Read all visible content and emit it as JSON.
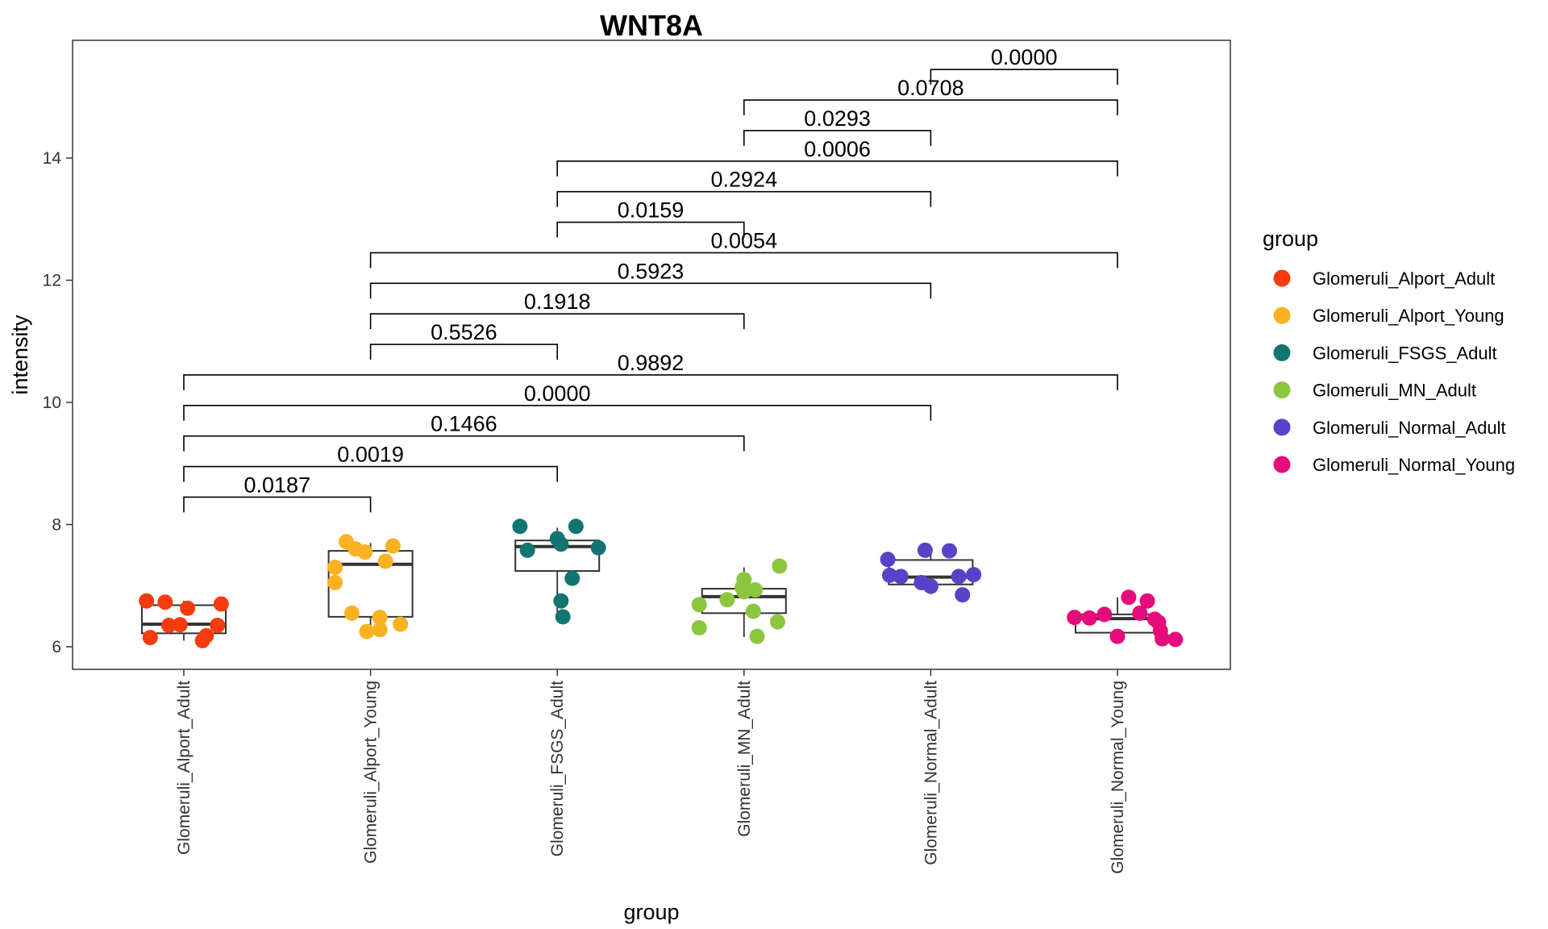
{
  "chart_data": {
    "type": "box",
    "title": "WNT8A",
    "xlabel": "group",
    "ylabel": "intensity",
    "ylim": [
      5.6,
      15.9
    ],
    "yticks": [
      6,
      8,
      10,
      12,
      14
    ],
    "categories": [
      "Glomeruli_Alport_Adult",
      "Glomeruli_Alport_Young",
      "Glomeruli_FSGS_Adult",
      "Glomeruli_MN_Adult",
      "Glomeruli_Normal_Adult",
      "Glomeruli_Normal_Young"
    ],
    "legend": {
      "title": "group",
      "position": "right",
      "items": [
        {
          "label": "Glomeruli_Alport_Adult",
          "color": "#F53B0F"
        },
        {
          "label": "Glomeruli_Alport_Young",
          "color": "#FBB122"
        },
        {
          "label": "Glomeruli_FSGS_Adult",
          "color": "#137572"
        },
        {
          "label": "Glomeruli_MN_Adult",
          "color": "#8CC63F"
        },
        {
          "label": "Glomeruli_Normal_Adult",
          "color": "#5643C8"
        },
        {
          "label": "Glomeruli_Normal_Young",
          "color": "#E60B7A"
        }
      ]
    },
    "boxes": [
      {
        "q1": 6.22,
        "median": 6.37,
        "q3": 6.68,
        "whisker_low": 6.1,
        "whisker_high": 6.75
      },
      {
        "q1": 6.49,
        "median": 7.35,
        "q3": 7.57,
        "whisker_low": 6.24,
        "whisker_high": 7.7
      },
      {
        "q1": 7.24,
        "median": 7.64,
        "q3": 7.74,
        "whisker_low": 6.49,
        "whisker_high": 7.95
      },
      {
        "q1": 6.55,
        "median": 6.82,
        "q3": 6.95,
        "whisker_low": 6.16,
        "whisker_high": 7.3
      },
      {
        "q1": 7.02,
        "median": 7.14,
        "q3": 7.42,
        "whisker_low": 6.86,
        "whisker_high": 7.58
      },
      {
        "q1": 6.23,
        "median": 6.46,
        "q3": 6.53,
        "whisker_low": 6.12,
        "whisker_high": 6.81
      }
    ],
    "points": [
      [
        [
          -0.2,
          6.75
        ],
        [
          -0.1,
          6.73
        ],
        [
          0.02,
          6.63
        ],
        [
          0.2,
          6.7
        ],
        [
          -0.18,
          6.15
        ],
        [
          -0.08,
          6.35
        ],
        [
          -0.02,
          6.36
        ],
        [
          0.12,
          6.18
        ],
        [
          0.18,
          6.35
        ],
        [
          0.1,
          6.1
        ]
      ],
      [
        [
          -0.13,
          7.72
        ],
        [
          -0.08,
          7.6
        ],
        [
          -0.03,
          7.55
        ],
        [
          0.12,
          7.65
        ],
        [
          0.08,
          7.4
        ],
        [
          -0.19,
          7.3
        ],
        [
          -0.19,
          7.05
        ],
        [
          -0.1,
          6.55
        ],
        [
          0.05,
          6.48
        ],
        [
          -0.02,
          6.25
        ],
        [
          0.05,
          6.28
        ],
        [
          0.16,
          6.37
        ]
      ],
      [
        [
          -0.2,
          7.97
        ],
        [
          0.1,
          7.97
        ],
        [
          0.0,
          7.77
        ],
        [
          0.02,
          7.68
        ],
        [
          0.22,
          7.62
        ],
        [
          -0.16,
          7.58
        ],
        [
          0.08,
          7.12
        ],
        [
          0.02,
          6.75
        ],
        [
          0.03,
          6.49
        ]
      ],
      [
        [
          0.19,
          7.32
        ],
        [
          0.0,
          7.1
        ],
        [
          -0.01,
          6.97
        ],
        [
          0.06,
          6.93
        ],
        [
          0.0,
          6.9
        ],
        [
          -0.09,
          6.77
        ],
        [
          -0.24,
          6.69
        ],
        [
          0.05,
          6.58
        ],
        [
          0.18,
          6.41
        ],
        [
          -0.24,
          6.31
        ],
        [
          0.07,
          6.17
        ]
      ],
      [
        [
          -0.23,
          7.43
        ],
        [
          -0.03,
          7.58
        ],
        [
          0.1,
          7.57
        ],
        [
          -0.22,
          7.17
        ],
        [
          -0.16,
          7.15
        ],
        [
          -0.05,
          7.05
        ],
        [
          0.0,
          6.99
        ],
        [
          0.15,
          7.15
        ],
        [
          0.23,
          7.18
        ],
        [
          0.17,
          6.85
        ]
      ],
      [
        [
          0.06,
          6.81
        ],
        [
          0.16,
          6.75
        ],
        [
          -0.23,
          6.48
        ],
        [
          -0.15,
          6.47
        ],
        [
          -0.07,
          6.53
        ],
        [
          0.12,
          6.55
        ],
        [
          0.2,
          6.45
        ],
        [
          0.22,
          6.4
        ],
        [
          0.23,
          6.26
        ],
        [
          0.24,
          6.13
        ],
        [
          0.31,
          6.12
        ],
        [
          0.0,
          6.17
        ]
      ]
    ],
    "comparisons": [
      {
        "from": 0,
        "to": 1,
        "y": 8.45,
        "label": "0.0187"
      },
      {
        "from": 0,
        "to": 2,
        "y": 8.95,
        "label": "0.0019"
      },
      {
        "from": 0,
        "to": 3,
        "y": 9.45,
        "label": "0.1466"
      },
      {
        "from": 0,
        "to": 4,
        "y": 9.95,
        "label": "0.0000"
      },
      {
        "from": 0,
        "to": 5,
        "y": 10.45,
        "label": "0.9892"
      },
      {
        "from": 1,
        "to": 2,
        "y": 10.95,
        "label": "0.5526"
      },
      {
        "from": 1,
        "to": 3,
        "y": 11.45,
        "label": "0.1918"
      },
      {
        "from": 1,
        "to": 4,
        "y": 11.95,
        "label": "0.5923"
      },
      {
        "from": 1,
        "to": 5,
        "y": 12.45,
        "label": "0.0054"
      },
      {
        "from": 2,
        "to": 3,
        "y": 12.95,
        "label": "0.0159"
      },
      {
        "from": 2,
        "to": 4,
        "y": 13.45,
        "label": "0.2924"
      },
      {
        "from": 2,
        "to": 5,
        "y": 13.95,
        "label": "0.0006"
      },
      {
        "from": 3,
        "to": 4,
        "y": 14.45,
        "label": "0.0293"
      },
      {
        "from": 3,
        "to": 5,
        "y": 14.95,
        "label": "0.0708"
      },
      {
        "from": 4,
        "to": 5,
        "y": 15.45,
        "label": "0.0000"
      }
    ]
  }
}
